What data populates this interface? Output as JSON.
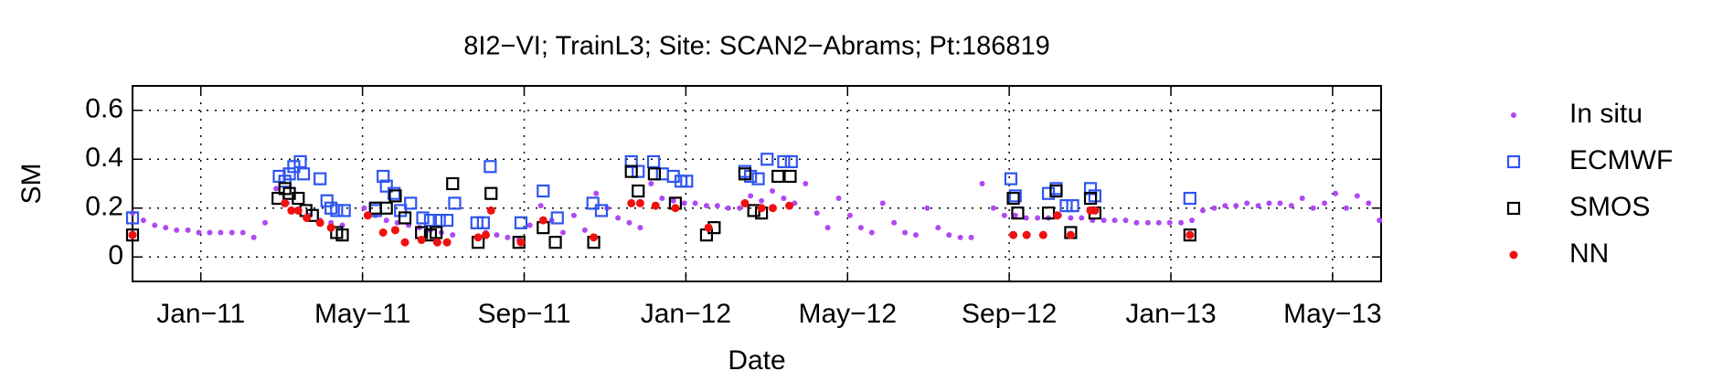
{
  "chart_data": {
    "type": "scatter",
    "title": "8I2−VI; TrainL3; Site: SCAN2−Abrams; Pt:186819",
    "x_label": "Date",
    "y_label": "SM",
    "xlim": [
      10.31,
      41.2
    ],
    "xticks": [
      {
        "value": 12,
        "label": "Jan−11"
      },
      {
        "value": 16,
        "label": "May−11"
      },
      {
        "value": 20,
        "label": "Sep−11"
      },
      {
        "value": 24,
        "label": "Jan−12"
      },
      {
        "value": 28,
        "label": "May−12"
      },
      {
        "value": 32,
        "label": "Sep−12"
      },
      {
        "value": 36,
        "label": "Jan−13"
      },
      {
        "value": 40,
        "label": "May−13"
      }
    ],
    "ylim": [
      -0.1,
      0.7
    ],
    "yticks": [
      0,
      0.2,
      0.4,
      0.6
    ],
    "grid": true,
    "legend": "right",
    "series": [
      {
        "name": "In situ",
        "color": "#b048f4",
        "marker": "dot",
        "x": [
          10.31,
          10.58,
          10.86,
          11.13,
          11.4,
          11.68,
          11.95,
          12.22,
          12.49,
          12.77,
          13.04,
          13.31,
          13.59,
          13.86,
          14.13,
          14.41,
          14.68,
          14.95,
          15.22,
          15.5,
          16.04,
          16.32,
          16.59,
          16.86,
          17.14,
          17.41,
          17.68,
          17.95,
          18.23,
          19.05,
          19.32,
          19.59,
          19.87,
          20.14,
          20.41,
          20.68,
          20.96,
          21.23,
          21.5,
          21.78,
          22.05,
          22.32,
          22.6,
          22.87,
          23.14,
          23.41,
          23.69,
          23.96,
          24.23,
          24.51,
          24.78,
          25.05,
          25.33,
          25.6,
          25.87,
          26.14,
          26.42,
          26.69,
          26.96,
          27.24,
          27.51,
          27.78,
          28.06,
          28.33,
          28.6,
          28.87,
          29.15,
          29.42,
          29.69,
          29.97,
          30.24,
          30.51,
          30.79,
          31.06,
          31.33,
          31.61,
          31.88,
          32.15,
          32.42,
          32.7,
          32.97,
          33.24,
          33.52,
          33.79,
          34.06,
          34.34,
          34.61,
          34.88,
          35.15,
          35.43,
          35.7,
          35.97,
          36.25,
          36.52,
          36.79,
          37.07,
          37.34,
          37.61,
          37.88,
          38.16,
          38.43,
          38.7,
          38.98,
          39.25,
          39.52,
          39.8,
          40.07,
          40.34,
          40.61,
          40.89,
          41.16
        ],
        "values": [
          0.18,
          0.15,
          0.13,
          0.12,
          0.11,
          0.11,
          0.1,
          0.1,
          0.1,
          0.1,
          0.1,
          0.08,
          0.14,
          0.28,
          0.22,
          0.19,
          0.17,
          0.15,
          0.14,
          0.13,
          0.2,
          0.17,
          0.15,
          0.14,
          0.13,
          0.12,
          0.11,
          0.1,
          0.09,
          0.1,
          0.09,
          0.08,
          0.07,
          0.13,
          0.21,
          0.15,
          0.1,
          0.17,
          0.11,
          0.26,
          0.2,
          0.16,
          0.14,
          0.12,
          0.3,
          0.24,
          0.23,
          0.22,
          0.22,
          0.21,
          0.21,
          0.2,
          0.2,
          0.25,
          0.23,
          0.27,
          0.24,
          0.22,
          0.3,
          0.18,
          0.12,
          0.24,
          0.17,
          0.12,
          0.1,
          0.22,
          0.14,
          0.1,
          0.09,
          0.2,
          0.12,
          0.09,
          0.08,
          0.08,
          0.3,
          0.2,
          0.17,
          0.17,
          0.16,
          0.16,
          0.16,
          0.17,
          0.16,
          0.16,
          0.15,
          0.15,
          0.15,
          0.15,
          0.14,
          0.14,
          0.14,
          0.14,
          0.14,
          0.15,
          0.19,
          0.2,
          0.21,
          0.21,
          0.22,
          0.21,
          0.22,
          0.22,
          0.21,
          0.24,
          0.2,
          0.22,
          0.26,
          0.2,
          0.25,
          0.22,
          0.15
        ]
      },
      {
        "name": "ECMWF",
        "color": "#2f55f0",
        "marker": "square",
        "x": [
          10.31,
          13.94,
          14.08,
          14.19,
          14.3,
          14.46,
          14.54,
          14.95,
          15.12,
          15.22,
          15.36,
          15.55,
          16.32,
          16.51,
          16.59,
          16.78,
          16.94,
          17.19,
          17.49,
          17.68,
          17.9,
          18.09,
          18.28,
          18.83,
          18.99,
          19.16,
          19.92,
          20.47,
          20.82,
          21.7,
          21.91,
          22.65,
          22.82,
          23.2,
          23.42,
          23.69,
          23.88,
          24.02,
          25.46,
          25.6,
          25.79,
          26.01,
          26.42,
          26.61,
          32.04,
          32.15,
          32.97,
          33.16,
          33.41,
          33.57,
          34.01,
          34.12,
          36.47
        ],
        "values": [
          0.16,
          0.33,
          0.31,
          0.34,
          0.37,
          0.39,
          0.34,
          0.32,
          0.23,
          0.2,
          0.19,
          0.19,
          0.19,
          0.33,
          0.29,
          0.26,
          0.19,
          0.22,
          0.16,
          0.15,
          0.15,
          0.15,
          0.22,
          0.14,
          0.14,
          0.37,
          0.14,
          0.27,
          0.16,
          0.22,
          0.19,
          0.39,
          0.35,
          0.39,
          0.34,
          0.33,
          0.31,
          0.31,
          0.35,
          0.33,
          0.32,
          0.4,
          0.39,
          0.39,
          0.32,
          0.25,
          0.26,
          0.28,
          0.21,
          0.21,
          0.28,
          0.25,
          0.24
        ]
      },
      {
        "name": "SMOS",
        "color": "#000000",
        "marker": "square",
        "x": [
          10.31,
          13.91,
          14.08,
          14.19,
          14.41,
          14.6,
          14.76,
          15.36,
          15.5,
          16.32,
          16.59,
          16.81,
          17.05,
          17.46,
          17.68,
          17.82,
          18.23,
          18.86,
          19.18,
          19.87,
          20.47,
          20.77,
          21.72,
          22.65,
          22.82,
          23.22,
          23.74,
          24.51,
          24.7,
          25.46,
          25.68,
          25.87,
          26.28,
          26.58,
          32.1,
          32.21,
          32.97,
          33.16,
          33.52,
          34.01,
          34.12,
          36.47
        ],
        "values": [
          0.09,
          0.24,
          0.28,
          0.26,
          0.24,
          0.19,
          0.17,
          0.1,
          0.09,
          0.2,
          0.2,
          0.25,
          0.16,
          0.1,
          0.09,
          0.1,
          0.3,
          0.06,
          0.26,
          0.06,
          0.12,
          0.06,
          0.06,
          0.35,
          0.27,
          0.34,
          0.22,
          0.09,
          0.12,
          0.34,
          0.19,
          0.18,
          0.33,
          0.33,
          0.24,
          0.18,
          0.18,
          0.27,
          0.1,
          0.24,
          0.18,
          0.09
        ]
      },
      {
        "name": "NN",
        "color": "#f01010",
        "marker": "circle",
        "x": [
          10.31,
          14.08,
          14.24,
          14.41,
          14.62,
          14.95,
          15.22,
          16.13,
          16.51,
          16.81,
          17.05,
          17.46,
          17.85,
          18.09,
          18.86,
          19.05,
          19.18,
          19.92,
          20.47,
          21.72,
          22.65,
          22.87,
          23.25,
          23.74,
          24.56,
          25.46,
          25.87,
          26.15,
          26.56,
          32.1,
          32.43,
          32.84,
          33.19,
          33.52,
          34.01,
          34.12,
          36.47
        ],
        "values": [
          0.09,
          0.22,
          0.19,
          0.19,
          0.16,
          0.14,
          0.12,
          0.17,
          0.1,
          0.11,
          0.06,
          0.07,
          0.06,
          0.06,
          0.08,
          0.09,
          0.19,
          0.06,
          0.15,
          0.08,
          0.22,
          0.22,
          0.21,
          0.2,
          0.12,
          0.22,
          0.2,
          0.2,
          0.21,
          0.09,
          0.09,
          0.09,
          0.17,
          0.09,
          0.19,
          0.19,
          0.09
        ]
      }
    ]
  }
}
